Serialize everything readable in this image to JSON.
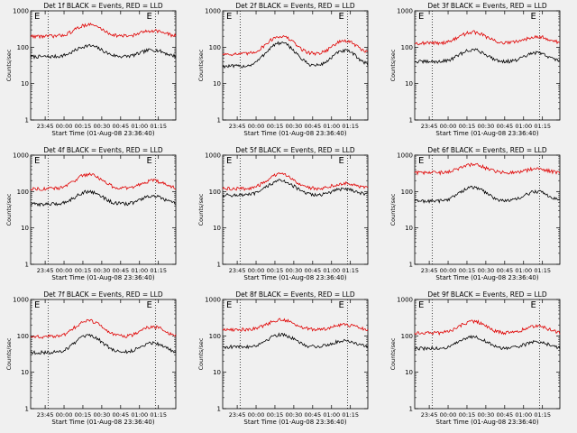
{
  "chart_data": [
    {
      "type": "line",
      "title": "Det 1f BLACK = Events, RED = LLD",
      "xlabel": "Start Time (01-Aug-08 23:36:40)",
      "ylabel": "Counts/sec",
      "y_scale": "log",
      "ylim": [
        1,
        1000
      ],
      "xlim": [
        0,
        100
      ],
      "x_ticks": [
        "23:45",
        "00:00",
        "00:15",
        "00:30",
        "00:45",
        "01:00",
        "01:15"
      ],
      "y_ticks": [
        "1",
        "10",
        "100",
        "1000"
      ],
      "annotations": [
        "E",
        "E"
      ],
      "series": [
        {
          "color": "#000000",
          "base": 55,
          "peak_a": 110,
          "peak_b": 85
        },
        {
          "color": "#e00000",
          "base": 200,
          "peak_a": 420,
          "peak_b": 290
        }
      ]
    },
    {
      "type": "line",
      "title": "Det 2f BLACK = Events, RED = LLD",
      "xlabel": "Start Time (01-Aug-08 23:36:40)",
      "ylabel": "Counts/sec",
      "y_scale": "log",
      "ylim": [
        1,
        1000
      ],
      "xlim": [
        0,
        100
      ],
      "x_ticks": [
        "23:45",
        "00:00",
        "00:15",
        "00:30",
        "00:45",
        "01:00",
        "01:15"
      ],
      "y_ticks": [
        "1",
        "10",
        "100",
        "1000"
      ],
      "annotations": [
        "E",
        "E"
      ],
      "series": [
        {
          "color": "#000000",
          "base": 30,
          "peak_a": 130,
          "peak_b": 80
        },
        {
          "color": "#e00000",
          "base": 65,
          "peak_a": 200,
          "peak_b": 150
        }
      ]
    },
    {
      "type": "line",
      "title": "Det 3f BLACK = Events, RED = LLD",
      "xlabel": "Start Time (01-Aug-08 23:36:40)",
      "ylabel": "Counts/sec",
      "y_scale": "log",
      "ylim": [
        1,
        1000
      ],
      "xlim": [
        0,
        100
      ],
      "x_ticks": [
        "23:45",
        "00:00",
        "00:15",
        "00:30",
        "00:45",
        "01:00",
        "01:15"
      ],
      "y_ticks": [
        "1",
        "10",
        "100",
        "1000"
      ],
      "annotations": [
        "E",
        "E"
      ],
      "series": [
        {
          "color": "#000000",
          "base": 40,
          "peak_a": 85,
          "peak_b": 70
        },
        {
          "color": "#e00000",
          "base": 130,
          "peak_a": 260,
          "peak_b": 200
        }
      ]
    },
    {
      "type": "line",
      "title": "Det 4f BLACK = Events, RED = LLD",
      "xlabel": "Start Time (01-Aug-08 23:36:40)",
      "ylabel": "Counts/sec",
      "y_scale": "log",
      "ylim": [
        1,
        1000
      ],
      "xlim": [
        0,
        100
      ],
      "x_ticks": [
        "23:45",
        "00:00",
        "00:15",
        "00:30",
        "00:45",
        "01:00",
        "01:15"
      ],
      "y_ticks": [
        "1",
        "10",
        "100",
        "1000"
      ],
      "annotations": [
        "E",
        "E"
      ],
      "series": [
        {
          "color": "#000000",
          "base": 45,
          "peak_a": 100,
          "peak_b": 75
        },
        {
          "color": "#e00000",
          "base": 120,
          "peak_a": 300,
          "peak_b": 200
        }
      ]
    },
    {
      "type": "line",
      "title": "Det 5f BLACK = Events, RED = LLD",
      "xlabel": "Start Time (01-Aug-08 23:36:40)",
      "ylabel": "Counts/sec",
      "y_scale": "log",
      "ylim": [
        1,
        1000
      ],
      "xlim": [
        0,
        100
      ],
      "x_ticks": [
        "23:45",
        "00:00",
        "00:15",
        "00:30",
        "00:45",
        "01:00",
        "01:15"
      ],
      "y_ticks": [
        "1",
        "10",
        "100",
        "1000"
      ],
      "annotations": [
        "E",
        "E"
      ],
      "series": [
        {
          "color": "#000000",
          "base": 80,
          "peak_a": 200,
          "peak_b": 120
        },
        {
          "color": "#e00000",
          "base": 120,
          "peak_a": 300,
          "peak_b": 170
        }
      ]
    },
    {
      "type": "line",
      "title": "Det 6f BLACK = Events, RED = LLD",
      "xlabel": "Start Time (01-Aug-08 23:36:40)",
      "ylabel": "Counts/sec",
      "y_scale": "log",
      "ylim": [
        1,
        1000
      ],
      "xlim": [
        0,
        100
      ],
      "x_ticks": [
        "23:45",
        "00:00",
        "00:15",
        "00:30",
        "00:45",
        "01:00",
        "01:15"
      ],
      "y_ticks": [
        "1",
        "10",
        "100",
        "1000"
      ],
      "annotations": [
        "E"
      ],
      "series": [
        {
          "color": "#000000",
          "base": 55,
          "peak_a": 130,
          "peak_b": 100
        },
        {
          "color": "#e00000",
          "base": 330,
          "peak_a": 550,
          "peak_b": 420
        }
      ]
    },
    {
      "type": "line",
      "title": "Det 7f BLACK = Events, RED = LLD",
      "xlabel": "Start Time (01-Aug-08 23:36:40)",
      "ylabel": "Counts/sec",
      "y_scale": "log",
      "ylim": [
        1,
        1000
      ],
      "xlim": [
        0,
        100
      ],
      "x_ticks": [
        "23:45",
        "00:00",
        "00:15",
        "00:30",
        "00:45",
        "01:00",
        "01:15"
      ],
      "y_ticks": [
        "1",
        "10",
        "100",
        "1000"
      ],
      "annotations": [
        "E",
        "E"
      ],
      "series": [
        {
          "color": "#000000",
          "base": 35,
          "peak_a": 100,
          "peak_b": 65
        },
        {
          "color": "#e00000",
          "base": 95,
          "peak_a": 260,
          "peak_b": 180
        }
      ]
    },
    {
      "type": "line",
      "title": "Det 8f BLACK = Events, RED = LLD",
      "xlabel": "Start Time (01-Aug-08 23:36:40)",
      "ylabel": "Counts/sec",
      "y_scale": "log",
      "ylim": [
        1,
        1000
      ],
      "xlim": [
        0,
        100
      ],
      "x_ticks": [
        "23:45",
        "00:00",
        "00:15",
        "00:30",
        "00:45",
        "01:00",
        "01:15"
      ],
      "y_ticks": [
        "1",
        "10",
        "100",
        "1000"
      ],
      "annotations": [
        "E",
        "E"
      ],
      "series": [
        {
          "color": "#000000",
          "base": 50,
          "peak_a": 110,
          "peak_b": 75
        },
        {
          "color": "#e00000",
          "base": 150,
          "peak_a": 280,
          "peak_b": 200
        }
      ]
    },
    {
      "type": "line",
      "title": "Det 9f BLACK = Events, RED = LLD",
      "xlabel": "Start Time (01-Aug-08 23:36:40)",
      "ylabel": "Counts/sec",
      "y_scale": "log",
      "ylim": [
        1,
        1000
      ],
      "xlim": [
        0,
        100
      ],
      "x_ticks": [
        "23:45",
        "00:00",
        "00:15",
        "00:30",
        "00:45",
        "01:00",
        "01:15"
      ],
      "y_ticks": [
        "1",
        "10",
        "100",
        "1000"
      ],
      "annotations": [
        "E",
        "E"
      ],
      "series": [
        {
          "color": "#000000",
          "base": 45,
          "peak_a": 95,
          "peak_b": 70
        },
        {
          "color": "#e00000",
          "base": 120,
          "peak_a": 250,
          "peak_b": 190
        }
      ]
    }
  ]
}
